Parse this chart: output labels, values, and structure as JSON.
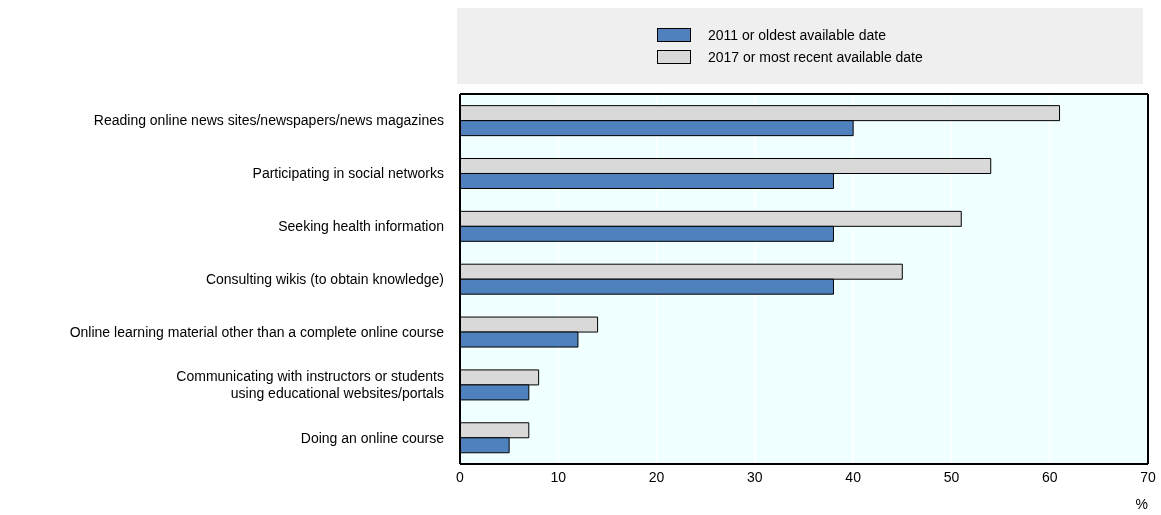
{
  "chart_data": {
    "type": "bar",
    "orientation": "horizontal",
    "xlabel": "%",
    "legend": "top",
    "categories": [
      "Reading online news sites/newspapers/news magazines",
      "Participating in social networks",
      "Seeking health information",
      "Consulting wikis (to obtain knowledge)",
      "Online learning material other than a complete online course",
      "Communicating with instructors or students\nusing educational websites/portals",
      "Doing an online course"
    ],
    "series": [
      {
        "name": "2011 or oldest available date",
        "color": "#4f81bd",
        "values": [
          40,
          38,
          38,
          38,
          12,
          7,
          5
        ]
      },
      {
        "name": "2017 or most recent available date",
        "color": "#d9d9d9",
        "values": [
          61,
          54,
          51,
          45,
          14,
          8,
          7
        ]
      }
    ],
    "xlim": [
      0,
      70
    ],
    "xticks": [
      0,
      10,
      20,
      30,
      40,
      50,
      60,
      70
    ],
    "grid": "x"
  }
}
